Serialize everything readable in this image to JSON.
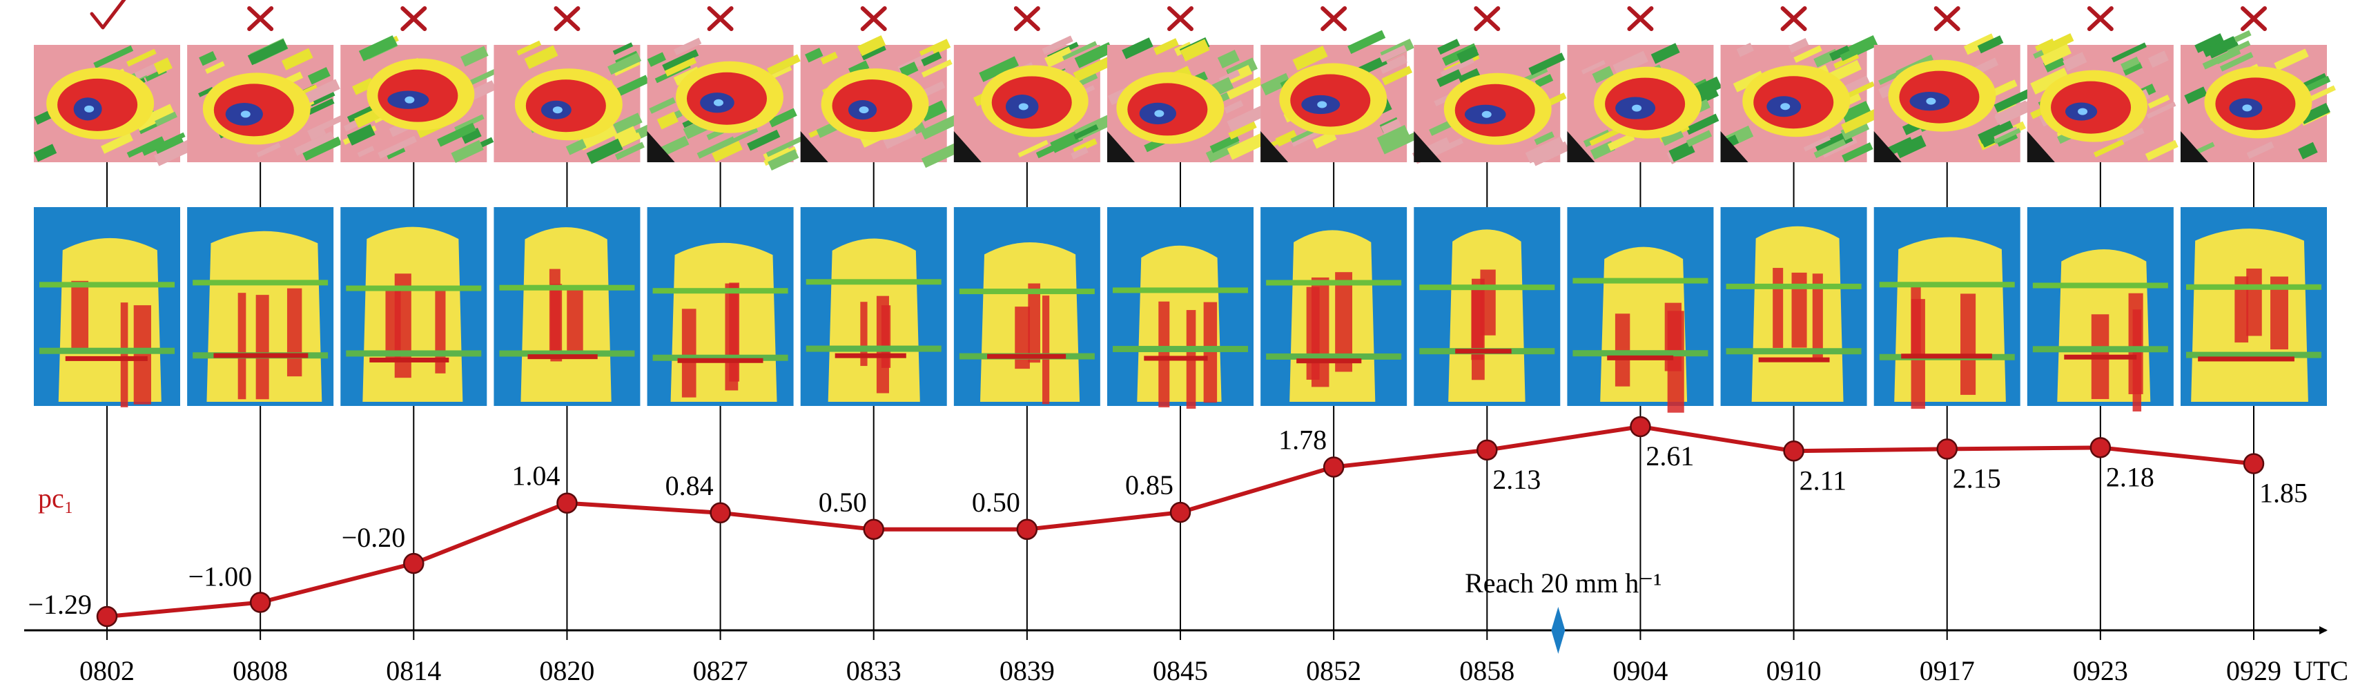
{
  "chart_data": {
    "type": "line",
    "ylabel": "pc₁",
    "x_unit": "UTC",
    "xlim": [
      "0802",
      "0929"
    ],
    "ylim": [
      -1.29,
      2.61
    ],
    "categories": [
      "0802",
      "0808",
      "0814",
      "0820",
      "0827",
      "0833",
      "0839",
      "0845",
      "0852",
      "0858",
      "0904",
      "0910",
      "0917",
      "0923",
      "0929"
    ],
    "series": [
      {
        "values": [
          -1.29,
          -1.0,
          -0.2,
          1.04,
          0.84,
          0.5,
          0.5,
          0.85,
          1.78,
          2.13,
          2.61,
          2.11,
          2.15,
          2.18,
          1.85
        ]
      }
    ],
    "data_labels": [
      "−1.29",
      "−1.00",
      "−0.20",
      "1.04",
      "0.84",
      "0.50",
      "0.50",
      "0.85",
      "1.78",
      "2.13",
      "2.61",
      "2.11",
      "2.15",
      "2.18",
      "1.85"
    ],
    "marks": [
      "check",
      "cross",
      "cross",
      "cross",
      "cross",
      "cross",
      "cross",
      "cross",
      "cross",
      "cross",
      "cross",
      "cross",
      "cross",
      "cross",
      "cross"
    ],
    "annotation": {
      "text": "Reach 20 mm h⁻¹",
      "x": "0858–0904"
    },
    "grid": false,
    "legend": "none",
    "colors": {
      "line": "#c0161b",
      "marker": "#cc1f25",
      "axis": "#000000",
      "check": "#b01820",
      "cross": "#b01820",
      "diamond": "#1b7dc4",
      "panel_background": "#1b82c9"
    }
  }
}
